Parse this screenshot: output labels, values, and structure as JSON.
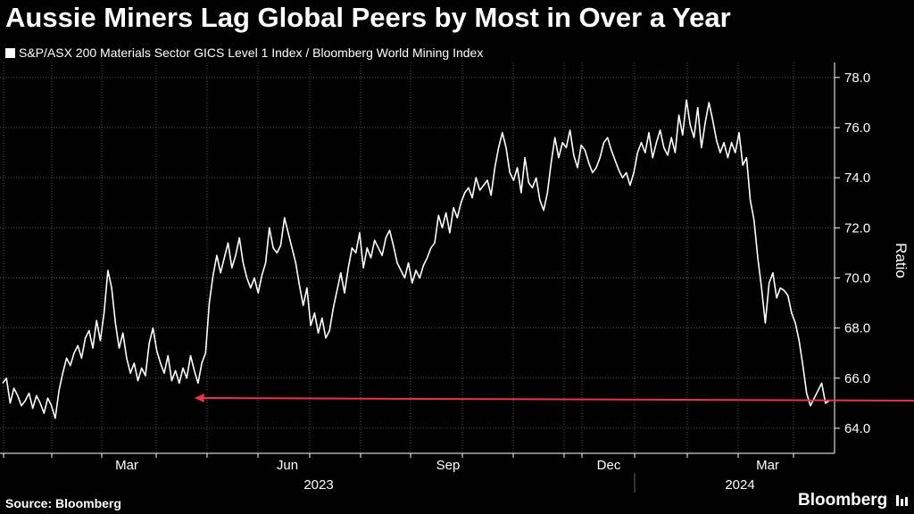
{
  "title": "Aussie Miners Lag Global Peers by Most in Over a Year",
  "legend_label": "S&P/ASX 200 Materials Sector GICS Level 1 Index / Bloomberg World Mining Index",
  "source": "Source: Bloomberg",
  "brand": "Bloomberg",
  "brand_icon": "bar-chart-icon",
  "colors": {
    "background": "#000000",
    "line": "#ffffff",
    "annotation_arrow": "#e8354b",
    "grid": "#555555"
  },
  "chart_data": {
    "type": "line",
    "ylabel": "Ratio",
    "ylim": [
      63.0,
      78.6
    ],
    "y_ticks": [
      "64.0",
      "66.0",
      "68.0",
      "70.0",
      "72.0",
      "74.0",
      "76.0",
      "78.0"
    ],
    "y_tick_values": [
      64,
      66,
      68,
      70,
      72,
      74,
      76,
      78
    ],
    "x_tick_labels": [
      "Mar",
      "Jun",
      "Sep",
      "Dec",
      "Mar"
    ],
    "x_year_labels": [
      "2023",
      "2024"
    ],
    "grid": true,
    "annotation": {
      "type": "arrow",
      "y": 65.1,
      "from_index": 250,
      "to_index": 51
    },
    "series": [
      {
        "values": [
          65.8,
          66.0,
          65.0,
          65.6,
          65.3,
          64.9,
          65.1,
          65.4,
          64.8,
          65.3,
          65.0,
          64.6,
          65.2,
          64.9,
          64.4,
          65.5,
          66.2,
          66.8,
          66.5,
          67.0,
          67.3,
          66.8,
          67.6,
          67.9,
          67.2,
          68.3,
          67.5,
          68.6,
          70.3,
          69.6,
          68.2,
          67.2,
          67.8,
          66.8,
          66.2,
          66.6,
          65.9,
          66.4,
          66.1,
          67.4,
          68.0,
          67.1,
          66.6,
          66.2,
          66.9,
          65.9,
          66.3,
          65.8,
          66.4,
          66.0,
          66.9,
          66.3,
          65.8,
          66.6,
          67.0,
          69.0,
          70.1,
          70.9,
          70.2,
          70.8,
          71.4,
          70.4,
          70.9,
          71.6,
          70.6,
          70.0,
          69.6,
          70.0,
          69.4,
          70.1,
          70.6,
          72.0,
          71.2,
          71.0,
          71.3,
          72.4,
          71.8,
          71.2,
          70.6,
          69.7,
          68.9,
          69.6,
          68.1,
          68.6,
          67.8,
          68.4,
          67.6,
          67.9,
          68.8,
          69.5,
          70.2,
          69.4,
          70.4,
          71.2,
          71.0,
          71.8,
          70.4,
          71.2,
          70.8,
          71.5,
          71.2,
          70.9,
          71.6,
          71.9,
          71.3,
          70.6,
          70.3,
          70.0,
          70.6,
          69.8,
          70.3,
          70.0,
          70.5,
          70.8,
          71.2,
          71.4,
          72.5,
          72.0,
          72.6,
          71.8,
          72.8,
          72.4,
          73.0,
          73.4,
          73.6,
          73.2,
          74.0,
          73.5,
          73.7,
          73.9,
          73.3,
          74.4,
          75.2,
          75.8,
          75.2,
          74.2,
          73.9,
          74.4,
          73.4,
          74.8,
          73.8,
          73.6,
          74.0,
          73.1,
          72.7,
          73.4,
          74.6,
          75.6,
          74.8,
          75.4,
          75.2,
          75.9,
          74.9,
          74.4,
          75.3,
          75.1,
          74.6,
          74.2,
          74.4,
          74.8,
          75.4,
          75.6,
          75.1,
          74.7,
          74.3,
          74.0,
          74.2,
          73.7,
          74.2,
          75.0,
          75.4,
          75.0,
          75.8,
          74.8,
          75.4,
          75.9,
          75.2,
          74.9,
          75.6,
          75.0,
          76.5,
          75.7,
          77.1,
          76.1,
          75.6,
          76.8,
          75.2,
          76.2,
          77.0,
          76.3,
          75.5,
          75.0,
          75.4,
          74.8,
          75.4,
          75.0,
          75.8,
          74.5,
          74.8,
          73.1,
          72.3,
          70.8,
          69.6,
          68.2,
          69.8,
          70.2,
          69.2,
          69.6,
          69.5,
          69.3,
          68.6,
          68.2,
          67.5,
          66.5,
          65.4,
          64.9,
          65.2,
          65.5,
          65.8,
          65.0,
          65.1
        ],
        "color": "#ffffff"
      }
    ]
  }
}
